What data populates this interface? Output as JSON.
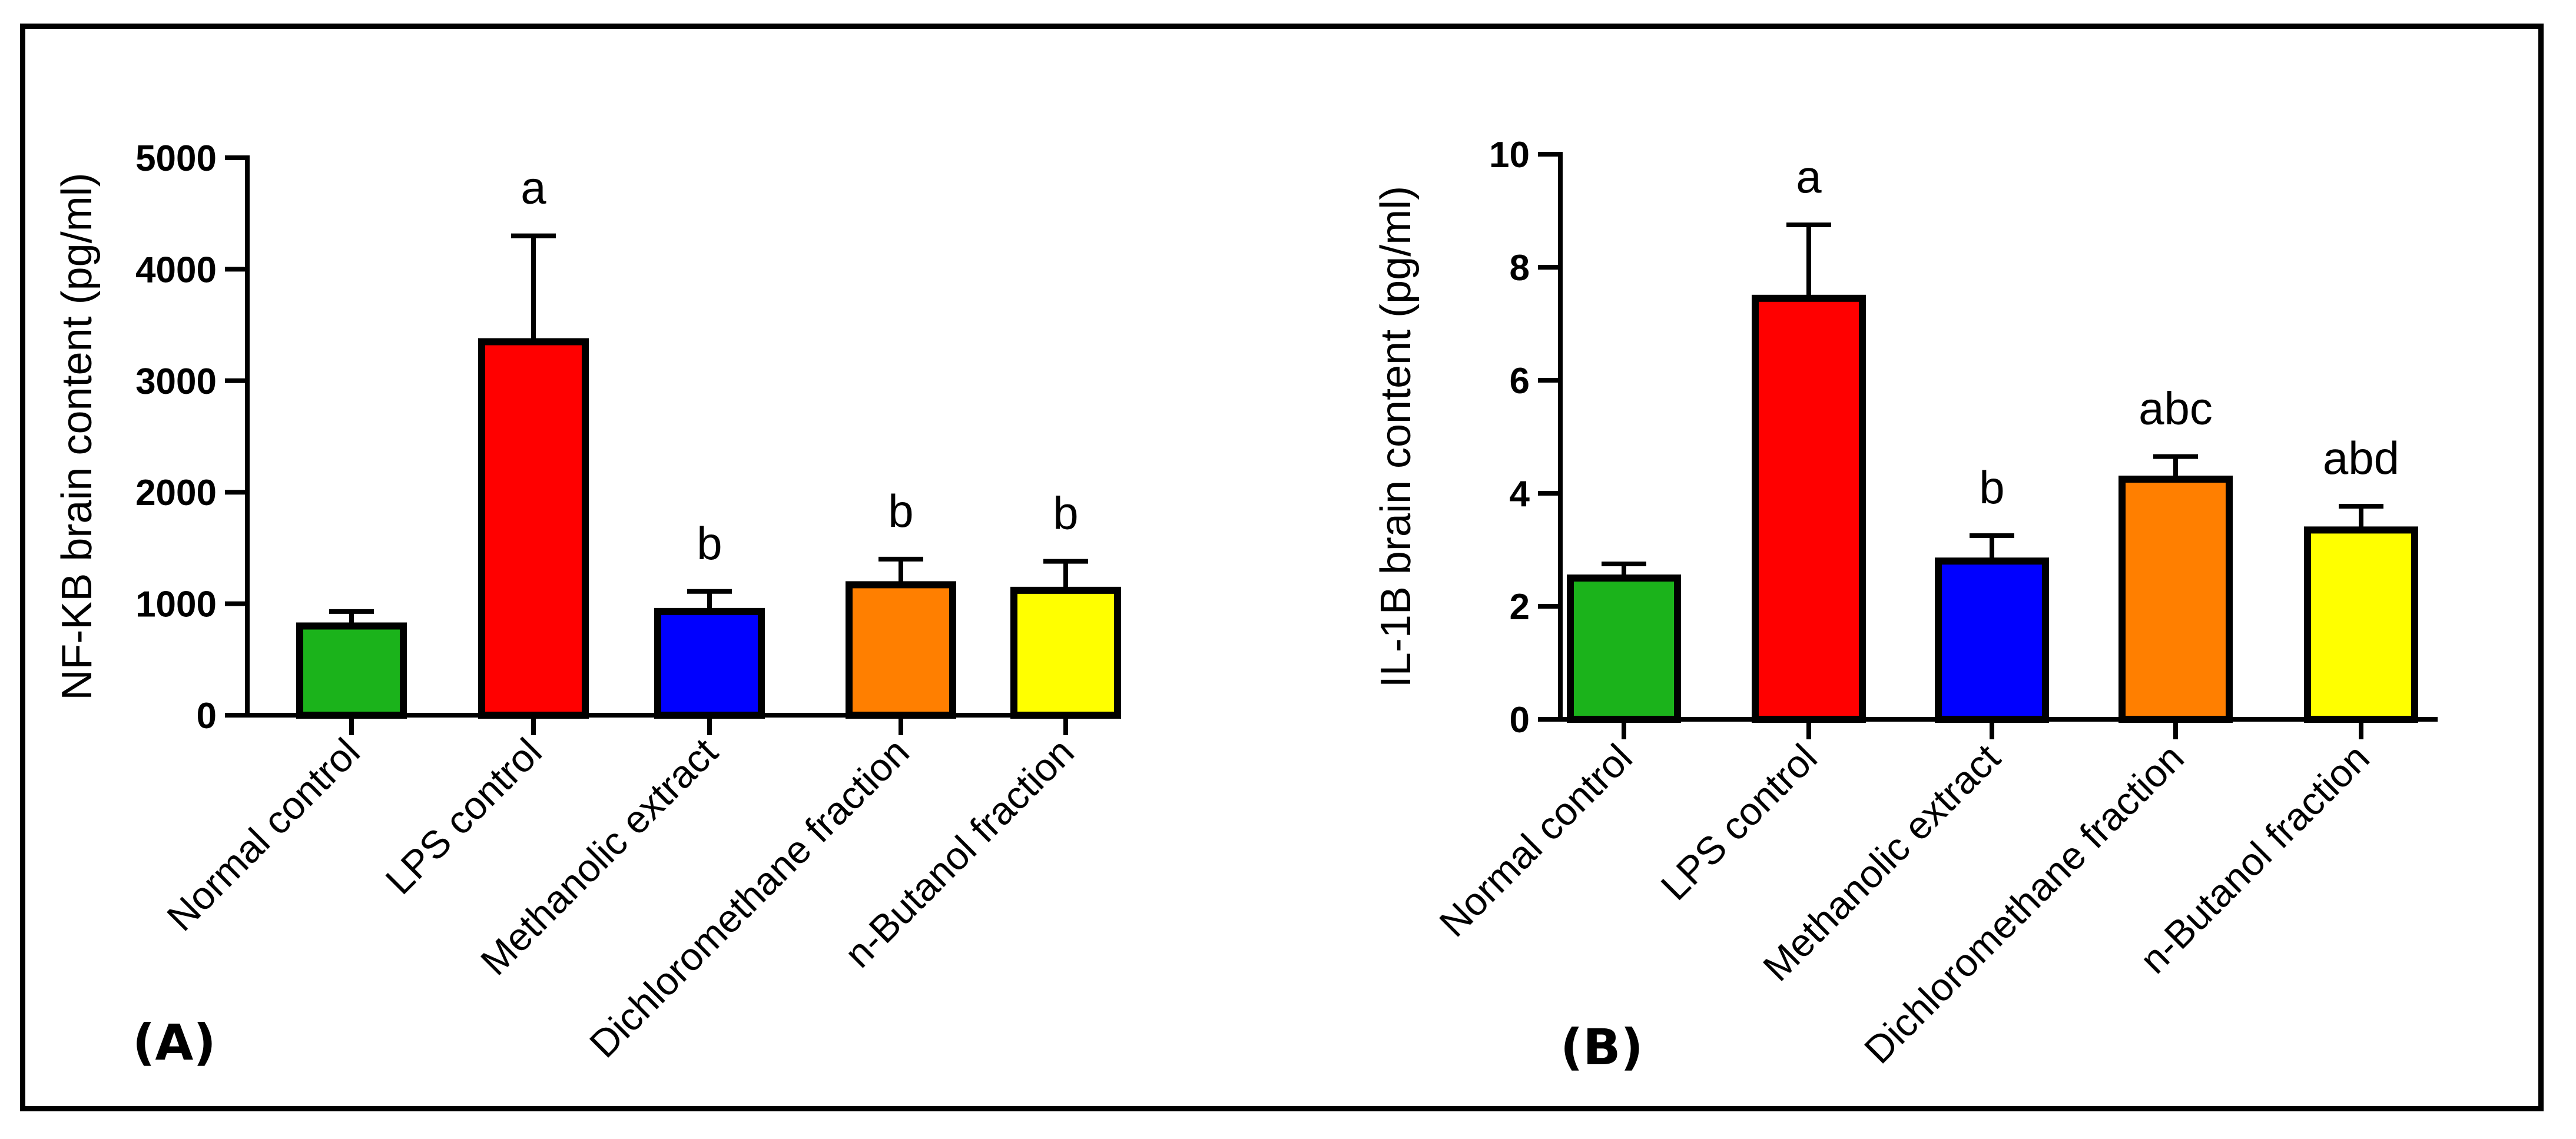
{
  "chart_data": [
    {
      "type": "bar",
      "panel_label": "(A)",
      "title": "",
      "xlabel": "",
      "ylabel": "NF-KB brain content (pg/ml)",
      "ylim": [
        0,
        5000
      ],
      "yticks": [
        0,
        1000,
        2000,
        3000,
        4000,
        5000
      ],
      "yticklabels": [
        "0",
        "1000",
        "2000",
        "3000",
        "4000",
        "5000"
      ],
      "categories": [
        "Normal control",
        "LPS control",
        "Methanolic extract",
        "Dichloromethane fraction",
        "n-Butanol fraction"
      ],
      "values": [
        800,
        3350,
        930,
        1170,
        1120
      ],
      "errors": [
        130,
        950,
        180,
        230,
        260
      ],
      "annotations": [
        "",
        "a",
        "b",
        "b",
        "b"
      ],
      "colors": [
        "#1bb31b",
        "#ff0000",
        "#0000ff",
        "#ff7f00",
        "#ffff00"
      ]
    },
    {
      "type": "bar",
      "panel_label": "(B)",
      "title": "",
      "xlabel": "",
      "ylabel": "IL-1B brain content (pg/ml)",
      "ylim": [
        0,
        10
      ],
      "yticks": [
        0,
        2,
        4,
        6,
        8,
        10
      ],
      "yticklabels": [
        "0",
        "2",
        "4",
        "6",
        "8",
        "10"
      ],
      "categories": [
        "Normal control",
        "LPS control",
        "Methanolic extract",
        "Dichloromethane fraction",
        "n-Butanol fraction"
      ],
      "values": [
        2.5,
        7.45,
        2.8,
        4.25,
        3.35
      ],
      "errors": [
        0.25,
        1.3,
        0.45,
        0.4,
        0.42
      ],
      "annotations": [
        "",
        "a",
        "b",
        "abc",
        "abd"
      ],
      "colors": [
        "#1bb31b",
        "#ff0000",
        "#0000ff",
        "#ff7f00",
        "#ffff00"
      ]
    }
  ]
}
